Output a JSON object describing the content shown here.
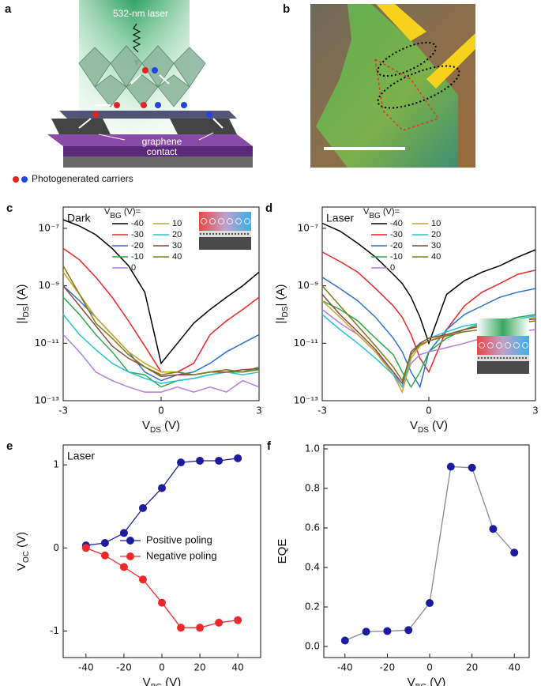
{
  "illustration": {
    "panel": "a",
    "laser": "532-nm laser",
    "contact": [
      "graphene",
      "contact"
    ],
    "legend": "Photogenerated carriers"
  },
  "micrograph": {
    "panel": "b"
  },
  "chart_data": [
    {
      "panel": "c",
      "type": "line",
      "annotation": "Dark",
      "ylog": true,
      "xlabel": [
        "V",
        "DS",
        " (V)"
      ],
      "ylabel": [
        "|I",
        "DS",
        "| (A)"
      ],
      "legend_title": [
        "V",
        "BG",
        " (V)="
      ],
      "xlim": [
        -3,
        3
      ],
      "xticks": [
        -3,
        0,
        3
      ],
      "ylim": [
        1e-13,
        5.5e-07
      ],
      "yticks": [
        {
          "value": 1e-13,
          "label": "10⁻¹³"
        },
        {
          "value": 1e-11,
          "label": "10⁻¹¹"
        },
        {
          "value": 1e-09,
          "label": "10⁻⁹"
        },
        {
          "value": 1e-07,
          "label": "10⁻⁷"
        }
      ],
      "x": [
        -3,
        -2.5,
        -2,
        -1.5,
        -1,
        -0.5,
        0,
        0.5,
        1,
        1.5,
        2,
        2.5,
        3
      ],
      "series": [
        {
          "name": "-40",
          "color": "#000000",
          "values": [
            2e-07,
            1.2e-07,
            6e-08,
            2e-08,
            5e-09,
            6e-10,
            2e-12,
            1e-11,
            5e-11,
            1.5e-10,
            4e-10,
            1e-09,
            3e-09
          ]
        },
        {
          "name": "-30",
          "color": "#e8272a",
          "values": [
            2e-08,
            8e-09,
            2e-09,
            4e-10,
            6e-11,
            8e-12,
            1e-12,
            1e-12,
            2e-12,
            2e-11,
            6e-11,
            1.5e-10,
            4e-10
          ]
        },
        {
          "name": "-20",
          "color": "#2d6fd6",
          "values": [
            1e-09,
            3e-10,
            8e-11,
            2e-11,
            5e-12,
            1e-12,
            5e-13,
            8e-13,
            1e-12,
            2e-12,
            5e-12,
            1e-11,
            2e-11
          ]
        },
        {
          "name": "-10",
          "color": "#2ca84e",
          "values": [
            4e-10,
            1e-10,
            2e-11,
            5e-12,
            1e-12,
            8e-13,
            3e-13,
            5e-13,
            6e-13,
            8e-13,
            1e-12,
            1e-12,
            1.5e-12
          ]
        },
        {
          "name": "0",
          "color": "#b07fe0",
          "values": [
            2e-11,
            5e-12,
            1e-12,
            5e-13,
            3e-13,
            2e-13,
            2e-13,
            3e-13,
            2e-13,
            3e-13,
            2e-13,
            5e-13,
            3e-13
          ]
        },
        {
          "name": "10",
          "color": "#c9a227",
          "values": [
            3e-09,
            5e-10,
            8e-11,
            2e-11,
            5e-12,
            2e-12,
            1e-12,
            1e-12,
            8e-13,
            1e-12,
            1.2e-12,
            1e-12,
            1.2e-12
          ]
        },
        {
          "name": "20",
          "color": "#27c4d3",
          "values": [
            1e-10,
            2e-11,
            6e-12,
            2e-12,
            1e-12,
            6e-13,
            4e-13,
            5e-13,
            6e-13,
            8e-13,
            1e-12,
            8e-13,
            1e-12
          ]
        },
        {
          "name": "30",
          "color": "#8b4a3c",
          "values": [
            1e-09,
            2e-10,
            4e-11,
            8e-12,
            3e-12,
            1.5e-12,
            7e-13,
            8e-13,
            8e-13,
            1e-12,
            1e-12,
            1.2e-12,
            1.3e-12
          ]
        },
        {
          "name": "40",
          "color": "#7d7a17",
          "values": [
            5e-09,
            5e-10,
            5e-11,
            1.5e-11,
            4e-12,
            1.5e-12,
            8e-13,
            1e-12,
            8e-13,
            1e-12,
            1.2e-12,
            1e-12,
            1.2e-12
          ]
        }
      ]
    },
    {
      "panel": "d",
      "type": "line",
      "annotation": "Laser",
      "ylog": true,
      "xlabel": [
        "V",
        "DS",
        " (V)"
      ],
      "ylabel": [
        "|I",
        "DS",
        "| (A)"
      ],
      "legend_title": [
        "V",
        "BG",
        " (V)="
      ],
      "xlim": [
        -3,
        3
      ],
      "xticks": [
        -3,
        0,
        3
      ],
      "ylim": [
        1e-13,
        5.5e-07
      ],
      "yticks": [
        {
          "value": 1e-13,
          "label": "10⁻¹³"
        },
        {
          "value": 1e-11,
          "label": "10⁻¹¹"
        },
        {
          "value": 1e-09,
          "label": "10⁻⁹"
        },
        {
          "value": 1e-07,
          "label": "10⁻⁷"
        }
      ],
      "x": [
        -3,
        -2.5,
        -2,
        -1.5,
        -1,
        -0.75,
        -0.5,
        -0.25,
        0,
        0.5,
        1,
        1.5,
        2,
        2.5,
        3
      ],
      "series": [
        {
          "name": "-40",
          "color": "#000000",
          "values": [
            1.5e-07,
            8e-08,
            3e-08,
            1e-08,
            2.5e-09,
            1.2e-09,
            4e-10,
            8e-11,
            1e-11,
            5e-10,
            1.5e-09,
            3e-09,
            5e-09,
            1e-08,
            1.8e-08
          ]
        },
        {
          "name": "-30",
          "color": "#e8272a",
          "values": [
            1.5e-08,
            7e-09,
            3e-09,
            8e-10,
            2e-10,
            8e-11,
            2e-11,
            3e-12,
            1e-12,
            3e-11,
            2e-10,
            6e-10,
            1.2e-09,
            2.5e-09,
            3.5e-09
          ]
        },
        {
          "name": "-20",
          "color": "#2d6fd6",
          "values": [
            2e-09,
            8e-10,
            3e-10,
            8e-11,
            1.5e-11,
            5e-12,
            1e-12,
            3e-13,
            5e-12,
            3e-11,
            1e-10,
            2e-10,
            4e-10,
            6e-10,
            8e-10
          ]
        },
        {
          "name": "-10",
          "color": "#2ca84e",
          "values": [
            3e-10,
            1.5e-10,
            6e-11,
            1.5e-11,
            4e-12,
            1e-12,
            3e-13,
            1e-12,
            5e-12,
            1.5e-11,
            3e-11,
            5e-11,
            6e-11,
            8e-11,
            1e-10
          ]
        },
        {
          "name": "0",
          "color": "#b07fe0",
          "values": [
            1.5e-10,
            5e-11,
            2e-11,
            5e-12,
            1e-12,
            3e-13,
            2e-12,
            4e-12,
            5e-12,
            7e-12,
            1e-11,
            1.5e-11,
            2e-11,
            2.5e-11,
            3e-11
          ]
        },
        {
          "name": "10",
          "color": "#c9a227",
          "values": [
            3e-10,
            8e-11,
            2e-11,
            5e-12,
            8e-13,
            2e-13,
            3e-12,
            8e-12,
            1.2e-11,
            2e-11,
            3e-11,
            4e-11,
            5e-11,
            6e-11,
            8e-11
          ]
        },
        {
          "name": "20",
          "color": "#27c4d3",
          "values": [
            1e-10,
            3e-11,
            1e-11,
            3e-12,
            8e-13,
            3e-13,
            4e-12,
            1e-11,
            1.5e-11,
            2.5e-11,
            4e-11,
            5e-11,
            6e-11,
            7e-11,
            9e-11
          ]
        },
        {
          "name": "30",
          "color": "#8b4a3c",
          "values": [
            5e-10,
            1e-10,
            2.5e-11,
            6e-12,
            1e-12,
            4e-13,
            5e-12,
            1e-11,
            1.5e-11,
            2e-11,
            3e-11,
            4e-11,
            5e-11,
            6e-11,
            7e-11
          ]
        },
        {
          "name": "40",
          "color": "#7d7a17",
          "values": [
            1e-09,
            2e-10,
            4e-11,
            8e-12,
            1.5e-12,
            5e-13,
            4e-12,
            9e-12,
            1.2e-11,
            1.8e-11,
            2.5e-11,
            3e-11,
            4e-11,
            5e-11,
            6e-11
          ]
        }
      ]
    },
    {
      "panel": "e",
      "type": "line",
      "annotation": "Laser",
      "markers": true,
      "xlabel": [
        "V",
        "BG",
        " (V)"
      ],
      "ylabel": [
        "V",
        "OC",
        " (V)"
      ],
      "xlim": [
        -52,
        52
      ],
      "xticks": [
        -40,
        -20,
        0,
        20,
        40
      ],
      "ylim": [
        -1.32,
        1.24
      ],
      "yticks": [
        -1,
        0,
        1
      ],
      "x": [
        -40,
        -30,
        -20,
        -10,
        0,
        10,
        20,
        30,
        40
      ],
      "series": [
        {
          "name": "Positive poling",
          "color": "#1c1c9e",
          "values": [
            0.03,
            0.06,
            0.18,
            0.48,
            0.72,
            1.03,
            1.05,
            1.05,
            1.08
          ]
        },
        {
          "name": "Negative poling",
          "color": "#f0282a",
          "values": [
            0.0,
            -0.09,
            -0.23,
            -0.38,
            -0.66,
            -0.96,
            -0.96,
            -0.9,
            -0.87
          ]
        }
      ]
    },
    {
      "panel": "f",
      "type": "line",
      "markers": true,
      "xlabel": [
        "V",
        "BG",
        " (V)"
      ],
      "ylabel": [
        "EQE"
      ],
      "xlim": [
        -50,
        47
      ],
      "xticks": [
        -40,
        -20,
        0,
        20,
        40
      ],
      "ylim": [
        -0.056,
        1.02
      ],
      "yticks": [
        {
          "value": 0,
          "label": "0.0"
        },
        {
          "value": 0.2,
          "label": "0.2"
        },
        {
          "value": 0.4,
          "label": "0.4"
        },
        {
          "value": 0.6,
          "label": "0.6"
        },
        {
          "value": 0.8,
          "label": "0.8"
        },
        {
          "value": 1,
          "label": "1.0"
        }
      ],
      "x": [
        -40,
        -30,
        -20,
        -10,
        0,
        10,
        20,
        30,
        40
      ],
      "color": "#1c1c9e",
      "line_color": "#8a8a8a",
      "values": [
        0.03,
        0.075,
        0.078,
        0.083,
        0.22,
        0.91,
        0.905,
        0.595,
        0.475
      ]
    }
  ]
}
